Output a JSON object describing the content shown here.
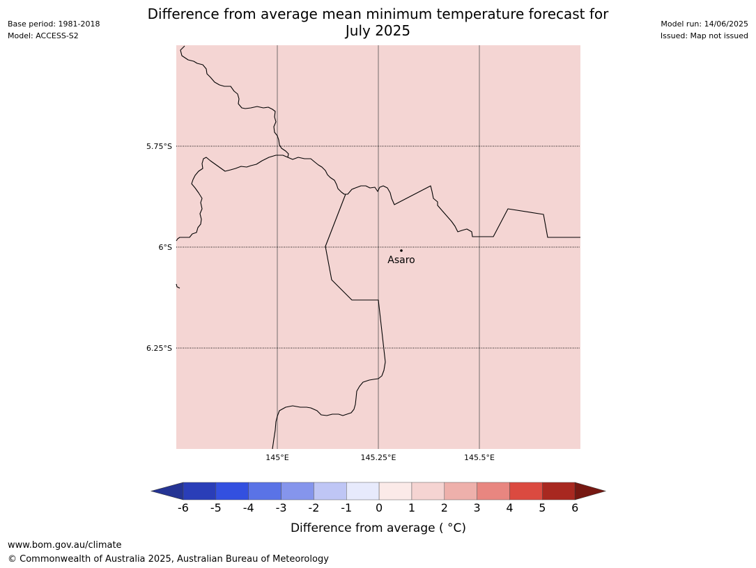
{
  "header": {
    "title_line1": "Difference from average mean minimum temperature forecast for",
    "title_line2": "July 2025",
    "base_period": "Base period: 1981-2018",
    "model": "Model: ACCESS-S2",
    "model_run": "Model run: 14/06/2025",
    "issued": "Issued: Map not issued"
  },
  "map": {
    "fill_color": "#f4d5d3",
    "anomaly_bin": "1 to 2",
    "lat_labels": [
      "5.75°S",
      "6°S",
      "6.25°S"
    ],
    "lon_labels": [
      "145°E",
      "145.25°E",
      "145.5°E"
    ],
    "place": {
      "name": "Asaro"
    }
  },
  "colorbar": {
    "label": "Difference from average ( °C)",
    "ticks": [
      "-6",
      "-5",
      "-4",
      "-3",
      "-2",
      "-1",
      "0",
      "1",
      "2",
      "3",
      "4",
      "5",
      "6"
    ],
    "colors": [
      "#253494",
      "#2a3eb8",
      "#3350e0",
      "#5a73e6",
      "#8595ec",
      "#bfc6f5",
      "#e7eafc",
      "#fbeae8",
      "#f5d4d2",
      "#eeb0ab",
      "#e88680",
      "#db4a40",
      "#a82820",
      "#761812"
    ]
  },
  "footer": {
    "url": "www.bom.gov.au/climate",
    "copyright": "© Commonwealth of Australia 2025, Australian Bureau of Meteorology"
  }
}
